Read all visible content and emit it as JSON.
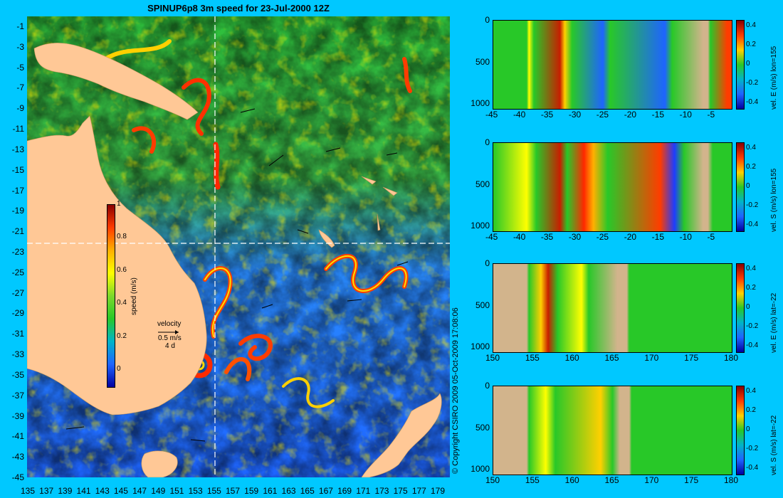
{
  "title": "SPINUP6p8 3m speed for 23-Jul-2000 12Z",
  "copyright": "© Copyright CSIRO 2009   05-Oct-2009 17:08:06",
  "map": {
    "lon_ticks": [
      "135",
      "137",
      "139",
      "141",
      "143",
      "145",
      "147",
      "149",
      "151",
      "153",
      "155",
      "157",
      "159",
      "161",
      "163",
      "165",
      "167",
      "169",
      "171",
      "173",
      "175",
      "177",
      "179"
    ],
    "lat_ticks": [
      "-1",
      "-3",
      "-5",
      "-7",
      "-9",
      "-11",
      "-13",
      "-15",
      "-17",
      "-19",
      "-21",
      "-23",
      "-25",
      "-27",
      "-29",
      "-31",
      "-33",
      "-35",
      "-37",
      "-39",
      "-41",
      "-43",
      "-45"
    ],
    "colorbar": {
      "label": "speed (m/s)",
      "ticks": [
        "1",
        "0.8",
        "0.6",
        "0.4",
        "0.2",
        "0"
      ]
    },
    "legend": {
      "title": "velocity",
      "speed": "0.5 m/s",
      "duration": "4 d"
    },
    "colors": {
      "land": "#ffc896",
      "ocean_low": "#1e64ff",
      "ocean_mid": "#28c828",
      "ocean_high": "#ff3c00",
      "section_line": "#ffffff"
    }
  },
  "panels": [
    {
      "x_ticks": [
        "-45",
        "-40",
        "-35",
        "-30",
        "-25",
        "-20",
        "-15",
        "-10",
        "-5"
      ],
      "y_ticks": [
        "0",
        "500",
        "1000"
      ],
      "label": "vel. E (m/s) lon=155",
      "cbar_ticks": [
        "0.4",
        "0.2",
        "0",
        "-0.2",
        "-0.4"
      ]
    },
    {
      "x_ticks": [
        "-45",
        "-40",
        "-35",
        "-30",
        "-25",
        "-20",
        "-15",
        "-10",
        "-5"
      ],
      "y_ticks": [
        "0",
        "500",
        "1000"
      ],
      "label": "vel. S (m/s) lon=155",
      "cbar_ticks": [
        "0.4",
        "0.2",
        "0",
        "-0.2",
        "-0.4"
      ]
    },
    {
      "x_ticks": [
        "150",
        "155",
        "160",
        "165",
        "170",
        "175",
        "180"
      ],
      "y_ticks": [
        "0",
        "500",
        "1000"
      ],
      "label": "vel. E (m/s) lat=-22",
      "cbar_ticks": [
        "0.4",
        "0.2",
        "0",
        "-0.2",
        "-0.4"
      ]
    },
    {
      "x_ticks": [
        "150",
        "155",
        "160",
        "165",
        "170",
        "175",
        "180"
      ],
      "y_ticks": [
        "0",
        "500",
        "1000"
      ],
      "label": "vel. S (m/s) lat=-22",
      "cbar_ticks": [
        "0.4",
        "0.2",
        "0",
        "-0.2",
        "-0.4"
      ]
    }
  ]
}
